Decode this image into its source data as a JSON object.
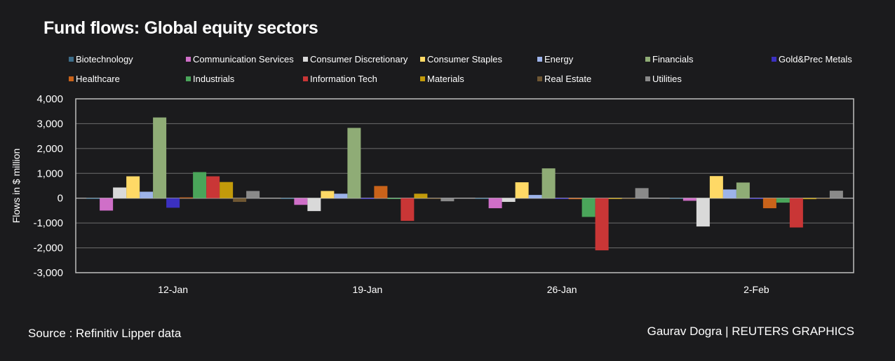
{
  "title": "Fund flows: Global equity sectors",
  "footer": {
    "source": "Source : Refinitiv Lipper data",
    "credit": "Gaurav Dogra | REUTERS GRAPHICS"
  },
  "chart_data": {
    "type": "bar",
    "title": "Fund flows: Global equity sectors",
    "xlabel": "",
    "ylabel": "Flows in $ million",
    "ylim": [
      -3000,
      4000
    ],
    "yticks": [
      4000,
      3000,
      2000,
      1000,
      0,
      -1000,
      -2000,
      -3000
    ],
    "ytick_labels": [
      "4,000",
      "3,000",
      "2,000",
      "1,000",
      "0",
      "-1,000",
      "-2,000",
      "-3,000"
    ],
    "grid": true,
    "legend_position": "top",
    "categories": [
      "12-Jan",
      "19-Jan",
      "26-Jan",
      "2-Feb"
    ],
    "series": [
      {
        "name": "Biotechnology",
        "color": "#3d6d8a",
        "values": [
          -20,
          -30,
          -20,
          -20
        ]
      },
      {
        "name": "Communication Services",
        "color": "#cf6fc8",
        "values": [
          -500,
          -270,
          -405,
          -105
        ]
      },
      {
        "name": "Consumer Discretionary",
        "color": "#d9d9d9",
        "values": [
          430,
          -520,
          -150,
          -1140
        ]
      },
      {
        "name": "Consumer Staples",
        "color": "#ffd966",
        "values": [
          880,
          290,
          640,
          890
        ]
      },
      {
        "name": "Energy",
        "color": "#9db3ea",
        "values": [
          260,
          180,
          130,
          350
        ]
      },
      {
        "name": "Financials",
        "color": "#8fac76",
        "values": [
          3250,
          2830,
          1200,
          630
        ]
      },
      {
        "name": "Gold&Prec Metals",
        "color": "#3b30c0",
        "values": [
          -385,
          -30,
          -15,
          -30
        ]
      },
      {
        "name": "Healthcare",
        "color": "#c9631a",
        "values": [
          30,
          490,
          -40,
          -405
        ]
      },
      {
        "name": "Industrials",
        "color": "#4aa55a",
        "values": [
          1050,
          -30,
          -755,
          -180
        ]
      },
      {
        "name": "Information Tech",
        "color": "#c93636",
        "values": [
          880,
          -915,
          -2100,
          -1180
        ]
      },
      {
        "name": "Materials",
        "color": "#c29a0a",
        "values": [
          650,
          180,
          -30,
          -40
        ]
      },
      {
        "name": "Real Estate",
        "color": "#6f5733",
        "values": [
          -150,
          -30,
          -20,
          -30
        ]
      },
      {
        "name": "Utilities",
        "color": "#8a8a8a",
        "values": [
          290,
          -125,
          405,
          300
        ]
      }
    ]
  }
}
